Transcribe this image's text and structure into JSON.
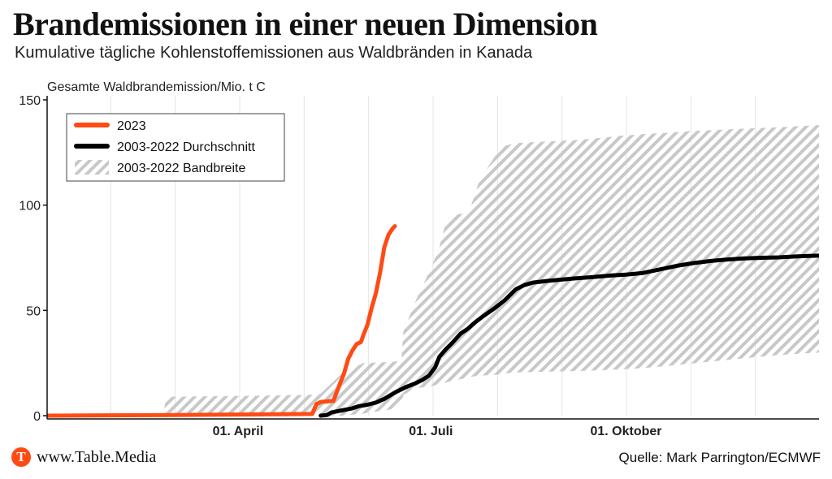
{
  "header": {
    "title": "Brandemissionen in einer neuen Dimension",
    "subtitle": "Kumulative tägliche Kohlenstoffemissionen aus Waldbränden in Kanada"
  },
  "footer": {
    "logo_letter": "T",
    "brand": "www.Table.Media",
    "source": "Quelle: Mark Parrington/ECMWF"
  },
  "chart_data": {
    "type": "line",
    "title": "Brandemissionen in einer neuen Dimension",
    "subtitle": "Kumulative tägliche Kohlenstoffemissionen aus Waldbränden in Kanada",
    "ylabel": "Gesamte Waldbrandemission/Mio. t C",
    "xlabel": "",
    "x_unit": "day of year",
    "xlim": [
      1,
      365
    ],
    "ylim": [
      0,
      150
    ],
    "y_ticks": [
      0,
      50,
      100,
      150
    ],
    "x_ticks": [
      {
        "label": "01. April",
        "day": 91
      },
      {
        "label": "01. Juli",
        "day": 182
      },
      {
        "label": "01. Oktober",
        "day": 274
      }
    ],
    "grid": "vertical",
    "legend_position": "top-left",
    "colors": {
      "series_2023": "#ff4a14",
      "average": "#000000",
      "band": "#c8c8c8"
    },
    "series": [
      {
        "name": "2023",
        "x": [
          1,
          60,
          110,
          126,
          128,
          130,
          136,
          139,
          141,
          143,
          145,
          147,
          149,
          150,
          152,
          154,
          156,
          158,
          160,
          162,
          164,
          165
        ],
        "y": [
          0,
          0.3,
          0.7,
          0.8,
          5.5,
          6.5,
          7,
          15,
          20,
          27,
          31,
          34,
          35,
          38,
          43,
          51,
          58,
          68,
          80,
          86,
          89,
          90
        ]
      },
      {
        "name": "2003-2022 Durchschnitt",
        "x": [
          130,
          133,
          135,
          140,
          145,
          148,
          152,
          156,
          160,
          165,
          170,
          175,
          178,
          181,
          184,
          186,
          189,
          192,
          196,
          199,
          203,
          207,
          212,
          217,
          222,
          226,
          230,
          237,
          243,
          250,
          258,
          266,
          274,
          282,
          290,
          298,
          306,
          314,
          322,
          330,
          338,
          346,
          354,
          360,
          365
        ],
        "y": [
          0,
          0.3,
          1.5,
          2.5,
          3.5,
          4.5,
          5.2,
          6.2,
          8,
          11,
          13.5,
          15.5,
          17,
          19,
          23,
          28,
          31.5,
          34.5,
          39,
          41,
          44.5,
          47.5,
          51,
          55,
          60,
          62,
          63.2,
          64,
          64.6,
          65.2,
          65.8,
          66.5,
          67,
          67.8,
          69.5,
          71.2,
          72.5,
          73.5,
          74.2,
          74.7,
          75,
          75.2,
          75.6,
          75.9,
          76
        ]
      }
    ],
    "band": {
      "name": "2003-2022 Bandbreite",
      "x": [
        1,
        56,
        57,
        101,
        129,
        130,
        140,
        150,
        163,
        168,
        169,
        175,
        182,
        186,
        188,
        190,
        192,
        194,
        197,
        199,
        201,
        205,
        214,
        216,
        222,
        232,
        242,
        252,
        262,
        272,
        282,
        292,
        302,
        312,
        322,
        332,
        342,
        352,
        365
      ],
      "y_min": [
        0,
        0,
        0,
        0,
        0,
        0,
        0,
        1,
        3,
        5.5,
        10,
        13,
        14,
        15,
        15.5,
        16,
        16.5,
        17,
        17.5,
        18,
        18.5,
        19,
        19.5,
        20,
        20.5,
        20.8,
        21,
        21.2,
        21.6,
        22,
        22.6,
        23.5,
        24.5,
        25.5,
        26.5,
        27.5,
        28.5,
        29.2,
        30
      ],
      "y_max": [
        0.5,
        0.6,
        9,
        9.5,
        10,
        10.5,
        20,
        25,
        25.5,
        26,
        40,
        55,
        70,
        80,
        88,
        94,
        95,
        95.5,
        96,
        96,
        100,
        112,
        126,
        128,
        129.5,
        130,
        130.5,
        131,
        132,
        133,
        133.7,
        134.3,
        135,
        135.5,
        136,
        136.4,
        136.8,
        137.3,
        138
      ]
    }
  },
  "legend": [
    {
      "label": "2023",
      "kind": "line",
      "color": "#ff4a14"
    },
    {
      "label": "2003-2022 Durchschnitt",
      "kind": "line",
      "color": "#000000"
    },
    {
      "label": "2003-2022 Bandbreite",
      "kind": "hatch",
      "color": "#c8c8c8"
    }
  ]
}
